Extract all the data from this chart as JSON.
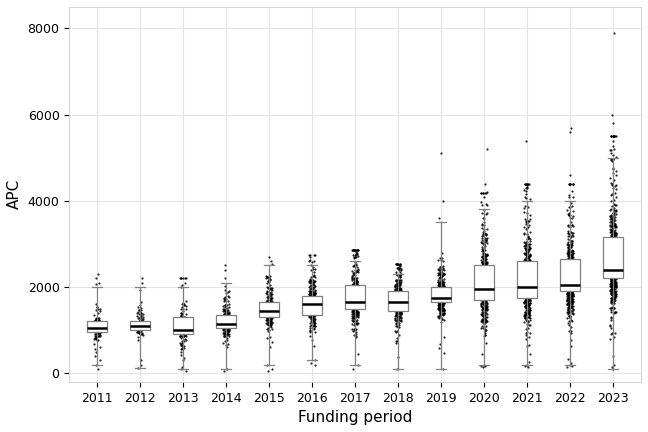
{
  "years": [
    2011,
    2012,
    2013,
    2014,
    2015,
    2016,
    2017,
    2018,
    2019,
    2020,
    2021,
    2022,
    2023
  ],
  "boxes": [
    {
      "q1": 950,
      "median": 1050,
      "q3": 1200,
      "whislo": 200,
      "whishi": 2000,
      "n": 80
    },
    {
      "q1": 1000,
      "median": 1100,
      "q3": 1200,
      "whislo": 130,
      "whishi": 2000,
      "n": 90
    },
    {
      "q1": 900,
      "median": 1000,
      "q3": 1300,
      "whislo": 100,
      "whishi": 2000,
      "n": 100
    },
    {
      "q1": 1050,
      "median": 1150,
      "q3": 1350,
      "whislo": 100,
      "whishi": 2100,
      "n": 160
    },
    {
      "q1": 1300,
      "median": 1450,
      "q3": 1650,
      "whislo": 200,
      "whishi": 2500,
      "n": 180
    },
    {
      "q1": 1350,
      "median": 1600,
      "q3": 1800,
      "whislo": 300,
      "whishi": 2500,
      "n": 230
    },
    {
      "q1": 1500,
      "median": 1650,
      "q3": 2050,
      "whislo": 200,
      "whishi": 2600,
      "n": 260
    },
    {
      "q1": 1450,
      "median": 1650,
      "q3": 1900,
      "whislo": 100,
      "whishi": 2300,
      "n": 300
    },
    {
      "q1": 1650,
      "median": 1750,
      "q3": 2000,
      "whislo": 100,
      "whishi": 3500,
      "n": 320
    },
    {
      "q1": 1700,
      "median": 1950,
      "q3": 2500,
      "whislo": 200,
      "whishi": 3800,
      "n": 380
    },
    {
      "q1": 1750,
      "median": 2000,
      "q3": 2600,
      "whislo": 200,
      "whishi": 4000,
      "n": 400
    },
    {
      "q1": 1900,
      "median": 2050,
      "q3": 2650,
      "whislo": 200,
      "whishi": 4000,
      "n": 420
    },
    {
      "q1": 2200,
      "median": 2400,
      "q3": 3150,
      "whislo": 100,
      "whishi": 5000,
      "n": 500
    }
  ],
  "outliers_high": [
    [
      2100,
      2200,
      2300
    ],
    [
      2100,
      2200
    ],
    [
      2100,
      2200
    ],
    [
      2200,
      2400,
      2500
    ],
    [
      2600,
      2700
    ],
    [
      2600,
      2700
    ],
    [
      2700,
      2800
    ],
    [
      2400,
      2500
    ],
    [
      3600,
      4000,
      5100
    ],
    [
      3900,
      4200,
      4400,
      5200
    ],
    [
      4100,
      4300,
      5400
    ],
    [
      4100,
      4600,
      5600,
      5700
    ],
    [
      5100,
      5400,
      5800,
      6000,
      7900
    ]
  ],
  "outliers_low": [
    [
      100,
      200,
      300,
      400,
      500,
      550,
      600
    ],
    [
      130,
      200,
      300
    ],
    [
      50,
      100,
      150
    ],
    [
      50,
      100
    ],
    [
      50,
      100,
      200
    ],
    [
      200,
      300
    ],
    [
      100,
      200
    ],
    [
      100
    ],
    [
      100
    ],
    [
      150,
      200
    ],
    [
      150,
      200
    ],
    [
      150,
      200
    ],
    [
      100,
      150,
      200
    ]
  ],
  "xlabel": "Funding period",
  "ylabel": "APC",
  "ylim": [
    -200,
    8500
  ],
  "yticks": [
    0,
    2000,
    4000,
    6000,
    8000
  ],
  "background_color": "#ffffff",
  "grid_color": "#e5e5e5",
  "box_facecolor": "#ffffff",
  "box_edgecolor": "#808080",
  "median_color": "#000000",
  "whisker_color": "#808080",
  "flier_color": "#000000",
  "box_width": 0.45
}
